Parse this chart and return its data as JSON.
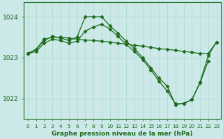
{
  "x": [
    0,
    1,
    2,
    3,
    4,
    5,
    6,
    7,
    8,
    9,
    10,
    11,
    12,
    13,
    14,
    15,
    16,
    17,
    18,
    19,
    20,
    21,
    22,
    23
  ],
  "line1": [
    1023.1,
    1023.2,
    1023.45,
    1023.5,
    1023.5,
    1023.48,
    1023.45,
    1023.43,
    1023.42,
    1023.4,
    1023.38,
    1023.35,
    1023.33,
    1023.3,
    1023.28,
    1023.25,
    1023.22,
    1023.2,
    1023.18,
    1023.15,
    1023.13,
    1023.1,
    1023.1,
    1023.38
  ],
  "line2": [
    1023.1,
    1023.2,
    1023.42,
    1023.52,
    1023.48,
    1023.42,
    1023.5,
    1024.0,
    1024.0,
    1024.0,
    1023.78,
    1023.6,
    1023.4,
    1023.22,
    1023.0,
    1022.75,
    1022.5,
    1022.3,
    1021.85,
    1021.88,
    1021.97,
    1022.38,
    1022.92,
    null
  ],
  "line3": [
    1023.1,
    1023.15,
    1023.35,
    1023.45,
    1023.42,
    1023.35,
    1023.4,
    1023.65,
    1023.75,
    1023.82,
    1023.7,
    1023.52,
    1023.32,
    1023.15,
    1022.95,
    1022.7,
    1022.42,
    1022.18,
    1021.87,
    1021.88,
    1021.97,
    1022.4,
    1023.05,
    1023.38
  ],
  "line_color": "#1a6b1a",
  "bg_color": "#cce8e8",
  "grid_color": "#aaddcc",
  "xlabel": "Graphe pression niveau de la mer (hPa)",
  "ylim": [
    1021.5,
    1024.35
  ],
  "yticks": [
    1022,
    1023,
    1024
  ],
  "xticks": [
    0,
    1,
    2,
    3,
    4,
    5,
    6,
    7,
    8,
    9,
    10,
    11,
    12,
    13,
    14,
    15,
    16,
    17,
    18,
    19,
    20,
    21,
    22,
    23
  ],
  "marker": "D",
  "markersize": 2.5,
  "linewidth": 0.9
}
